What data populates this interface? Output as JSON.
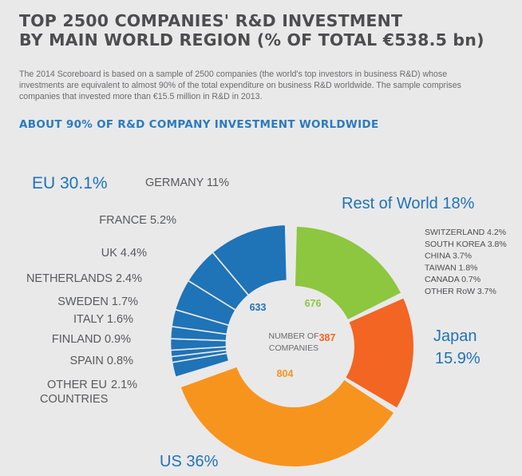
{
  "title_line1": "TOP 2500 COMPANIES' R&D INVESTMENT",
  "title_line2": "BY MAIN WORLD REGION (% OF TOTAL €538.5 bn)",
  "description": "The 2014 Scoreboard is based on a sample of 2500 companies (the world's top investors in business R&D) whose investments are equivalent to almost 90% of the total expenditure on business R&D worldwide. The sample comprises companies that invested more than €15.5 million in R&D in 2013.",
  "subtitle": "ABOUT 90% OF R&D COMPANY INVESTMENT WORLDWIDE",
  "colors": {
    "eu": "#1f73b7",
    "rest_of_world": "#8dc63f",
    "japan": "#f26522",
    "us": "#f7941d",
    "label_blue": "#1f73b7",
    "label_gray": "#58595b",
    "background": "#e9e9ea"
  },
  "chart_data": {
    "type": "pie",
    "variant": "donut",
    "total_label": "€538.5 bn",
    "center_label": [
      "NUMBER OF",
      "COMPANIES"
    ],
    "slices": [
      {
        "name": "Rest of World",
        "label": "Rest of World 18%",
        "value": 18.0,
        "companies": 676,
        "color": "#8dc63f",
        "breakdown": [
          {
            "label": "SWITZERLAND 4.2%",
            "value": 4.2
          },
          {
            "label": "SOUTH KOREA 3.8%",
            "value": 3.8
          },
          {
            "label": "CHINA 3.7%",
            "value": 3.7
          },
          {
            "label": "TAIWAN 1.8%",
            "value": 1.8
          },
          {
            "label": "CANADA 0.7%",
            "value": 0.7
          },
          {
            "label": "OTHER RoW 3.7%",
            "value": 3.7
          }
        ]
      },
      {
        "name": "Japan",
        "label_line1": "Japan",
        "label_line2": "15.9%",
        "value": 15.9,
        "companies": 387,
        "color": "#f26522"
      },
      {
        "name": "US",
        "label": "US 36%",
        "value": 36.0,
        "companies": 804,
        "color": "#f7941d"
      },
      {
        "name": "EU",
        "label": "EU 30.1%",
        "value": 30.1,
        "companies": 633,
        "color": "#1f73b7",
        "exploded": true,
        "sub_slices": [
          {
            "label": "OTHER EU",
            "label_value": "2.1%",
            "label_line2": "COUNTRIES",
            "value": 2.1
          },
          {
            "label": "SPAIN 0.8%",
            "value": 0.8
          },
          {
            "label": "FINLAND 0.9%",
            "value": 0.9
          },
          {
            "label": "ITALY 1.6%",
            "value": 1.6
          },
          {
            "label": "SWEDEN 1.7%",
            "value": 1.7
          },
          {
            "label": "NETHERLANDS 2.4%",
            "value": 2.4
          },
          {
            "label": "UK 4.4%",
            "value": 4.4
          },
          {
            "label": "FRANCE 5.2%",
            "value": 5.2
          },
          {
            "label": "GERMANY 11%",
            "value": 11.0
          }
        ]
      }
    ]
  }
}
